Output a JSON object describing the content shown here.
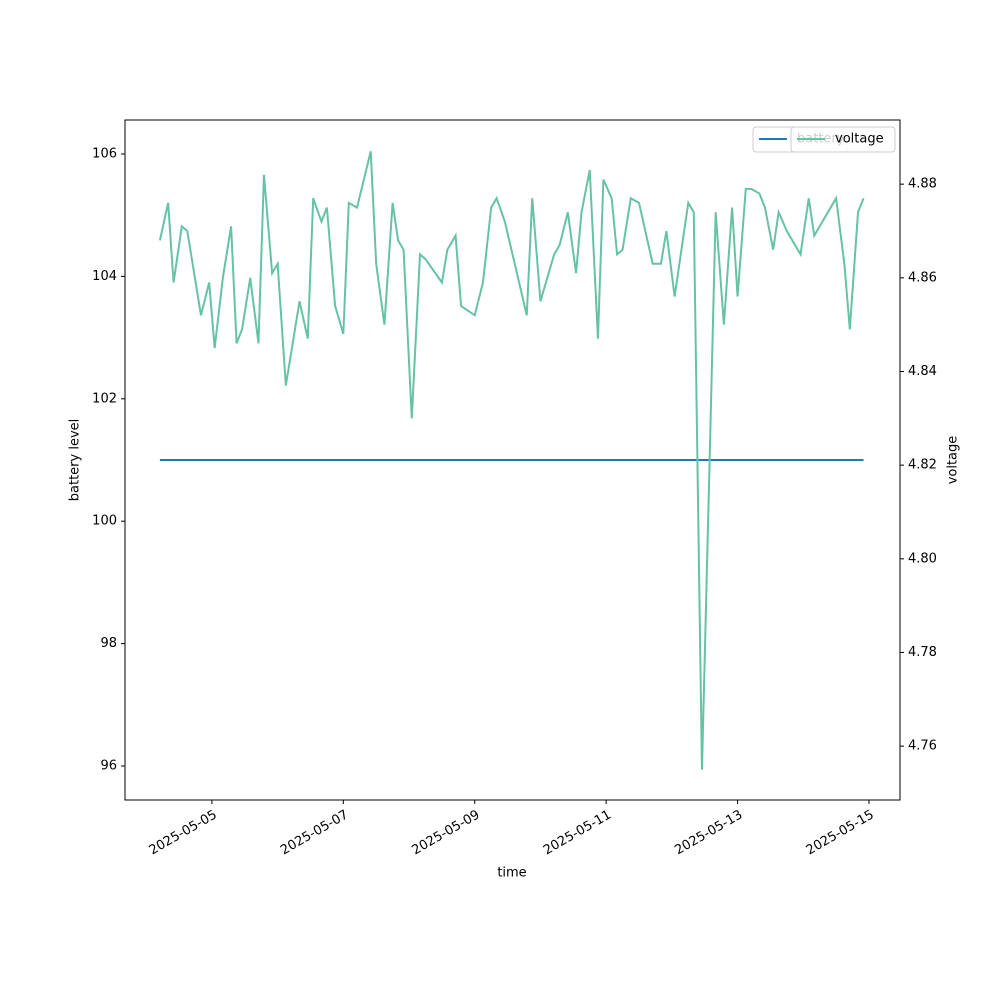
{
  "chart_data": {
    "type": "line",
    "x_label": "time",
    "y_label": "battery level",
    "y2_label": "voltage",
    "x": [
      "2025-05-04T05:00",
      "2025-05-04T08:00",
      "2025-05-04T10:00",
      "2025-05-04T13:00",
      "2025-05-04T15:00",
      "2025-05-04T20:00",
      "2025-05-04T23:00",
      "2025-05-05T01:00",
      "2025-05-05T04:00",
      "2025-05-05T07:00",
      "2025-05-05T09:00",
      "2025-05-05T11:00",
      "2025-05-05T14:00",
      "2025-05-05T17:00",
      "2025-05-05T19:00",
      "2025-05-05T22:00",
      "2025-05-06T00:00",
      "2025-05-06T03:00",
      "2025-05-06T08:00",
      "2025-05-06T11:00",
      "2025-05-06T13:00",
      "2025-05-06T16:00",
      "2025-05-06T18:00",
      "2025-05-06T21:00",
      "2025-05-07T00:00",
      "2025-05-07T02:00",
      "2025-05-07T05:00",
      "2025-05-07T10:00",
      "2025-05-07T12:00",
      "2025-05-07T15:00",
      "2025-05-07T18:00",
      "2025-05-07T20:00",
      "2025-05-07T22:00",
      "2025-05-08T01:00",
      "2025-05-08T04:00",
      "2025-05-08T06:00",
      "2025-05-08T12:00",
      "2025-05-08T14:00",
      "2025-05-08T17:00",
      "2025-05-08T19:00",
      "2025-05-09T00:00",
      "2025-05-09T03:00",
      "2025-05-09T06:00",
      "2025-05-09T08:00",
      "2025-05-09T11:00",
      "2025-05-09T19:00",
      "2025-05-09T21:00",
      "2025-05-10T00:00",
      "2025-05-10T05:00",
      "2025-05-10T07:00",
      "2025-05-10T10:00",
      "2025-05-10T13:00",
      "2025-05-10T15:00",
      "2025-05-10T18:00",
      "2025-05-10T21:00",
      "2025-05-10T23:00",
      "2025-05-11T02:00",
      "2025-05-11T04:00",
      "2025-05-11T06:00",
      "2025-05-11T09:00",
      "2025-05-11T12:00",
      "2025-05-11T17:00",
      "2025-05-11T20:00",
      "2025-05-11T22:00",
      "2025-05-12T01:00",
      "2025-05-12T03:00",
      "2025-05-12T06:00",
      "2025-05-12T08:00",
      "2025-05-12T11:00",
      "2025-05-12T14:00",
      "2025-05-12T16:00",
      "2025-05-12T19:00",
      "2025-05-12T22:00",
      "2025-05-13T00:00",
      "2025-05-13T03:00",
      "2025-05-13T05:00",
      "2025-05-13T08:00",
      "2025-05-13T10:00",
      "2025-05-13T13:00",
      "2025-05-13T15:00",
      "2025-05-13T18:00",
      "2025-05-13T23:00",
      "2025-05-14T02:00",
      "2025-05-14T04:00",
      "2025-05-14T12:00",
      "2025-05-14T15:00",
      "2025-05-14T17:00",
      "2025-05-14T20:00",
      "2025-05-14T22:00"
    ],
    "series": [
      {
        "name": "battery",
        "color": "#1f77b4",
        "axis": "y",
        "values": [
          101,
          101,
          101,
          101,
          101,
          101,
          101,
          101,
          101,
          101,
          101,
          101,
          101,
          101,
          101,
          101,
          101,
          101,
          101,
          101,
          101,
          101,
          101,
          101,
          101,
          101,
          101,
          101,
          101,
          101,
          101,
          101,
          101,
          101,
          101,
          101,
          101,
          101,
          101,
          101,
          101,
          101,
          101,
          101,
          101,
          101,
          101,
          101,
          101,
          101,
          101,
          101,
          101,
          101,
          101,
          101,
          101,
          101,
          101,
          101,
          101,
          101,
          101,
          101,
          101,
          101,
          101,
          101,
          101,
          101,
          101,
          101,
          101,
          101,
          101,
          101,
          101,
          101,
          101,
          101,
          101,
          101,
          101,
          101,
          101,
          101,
          101,
          101,
          101
        ]
      },
      {
        "name": "voltage",
        "color": "#66c2a5",
        "axis": "y2",
        "values": [
          4.868,
          4.876,
          4.859,
          4.871,
          4.87,
          4.852,
          4.859,
          4.845,
          4.86,
          4.871,
          4.846,
          4.849,
          4.86,
          4.846,
          4.882,
          4.861,
          4.863,
          4.837,
          4.855,
          4.847,
          4.877,
          4.872,
          4.875,
          4.854,
          4.848,
          4.876,
          4.875,
          4.887,
          4.863,
          4.85,
          4.876,
          4.868,
          4.866,
          4.83,
          4.865,
          4.864,
          4.859,
          4.866,
          4.869,
          4.854,
          4.852,
          4.859,
          4.875,
          4.877,
          4.872,
          4.852,
          4.877,
          4.855,
          4.865,
          4.867,
          4.874,
          4.861,
          4.874,
          4.883,
          4.847,
          4.881,
          4.877,
          4.865,
          4.866,
          4.877,
          4.876,
          4.863,
          4.863,
          4.87,
          4.856,
          4.864,
          4.876,
          4.874,
          4.755,
          4.826,
          4.874,
          4.85,
          4.875,
          4.856,
          4.879,
          4.879,
          4.878,
          4.875,
          4.866,
          4.874,
          4.87,
          4.865,
          4.877,
          4.869,
          4.877,
          4.863,
          4.849,
          4.874,
          4.877
        ]
      }
    ],
    "xlim": [
      "2025-05-03T16:15",
      "2025-05-15T11:20"
    ],
    "xticks": [
      "2025-05-05",
      "2025-05-07",
      "2025-05-09",
      "2025-05-11",
      "2025-05-13",
      "2025-05-15"
    ],
    "ylim": [
      95.444,
      106.556
    ],
    "yticks": [
      96,
      98,
      100,
      102,
      104,
      106
    ],
    "y2lim": [
      4.7485,
      4.8937
    ],
    "y2ticks": [
      4.76,
      4.78,
      {
        "value": 4.8,
        "label": "4.80"
      },
      4.82,
      4.84,
      4.86,
      4.88
    ],
    "grid": false,
    "legend": "upper right"
  }
}
